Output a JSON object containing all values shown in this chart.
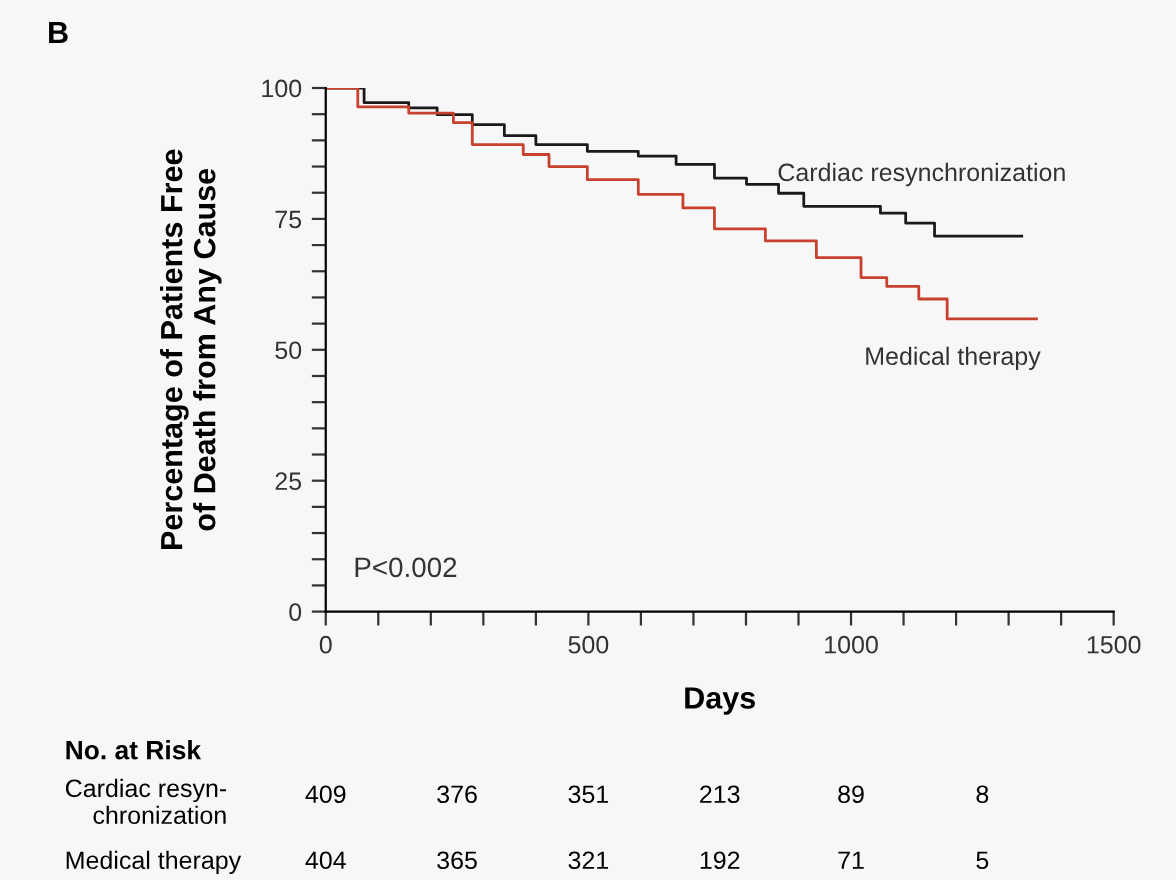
{
  "chart_data": {
    "type": "step",
    "xlabel": "Days",
    "ylabel": "Percentage of Patients Free\nof Death from Any Cause",
    "xlim": [
      0,
      1500
    ],
    "ylim": [
      0,
      100
    ],
    "xticks": [
      0,
      {
        "value": 100,
        "label": null
      },
      {
        "value": 200,
        "label": null
      },
      {
        "value": 300,
        "label": null
      },
      {
        "value": 400,
        "label": null
      },
      500,
      {
        "value": 600,
        "label": null
      },
      {
        "value": 700,
        "label": null
      },
      {
        "value": 800,
        "label": null
      },
      {
        "value": 900,
        "label": null
      },
      1000,
      {
        "value": 1100,
        "label": null
      },
      {
        "value": 1200,
        "label": null
      },
      {
        "value": 1300,
        "label": null
      },
      {
        "value": 1400,
        "label": null
      },
      1500
    ],
    "yticks": [
      0,
      {
        "value": 5,
        "label": null
      },
      {
        "value": 10,
        "label": null
      },
      {
        "value": 15,
        "label": null
      },
      {
        "value": 20,
        "label": null
      },
      25,
      {
        "value": 30,
        "label": null
      },
      {
        "value": 35,
        "label": null
      },
      {
        "value": 40,
        "label": null
      },
      {
        "value": 45,
        "label": null
      },
      50,
      {
        "value": 55,
        "label": null
      },
      {
        "value": 60,
        "label": null
      },
      {
        "value": 65,
        "label": null
      },
      {
        "value": 70,
        "label": null
      },
      75,
      {
        "value": 80,
        "label": null
      },
      {
        "value": 85,
        "label": null
      },
      {
        "value": 90,
        "label": null
      },
      {
        "value": 95,
        "label": null
      },
      100
    ],
    "grid": false,
    "legend": false,
    "series": [
      {
        "name": "Cardiac resynchronization",
        "color": "#1a1a1a",
        "x": [
          0,
          73,
          158,
          212,
          279,
          340,
          400,
          498,
          595,
          667,
          740,
          801,
          862,
          910,
          1056,
          1104,
          1159,
          1325
        ],
        "values": [
          100,
          97.2,
          96.2,
          94.9,
          93,
          90.9,
          89.2,
          87.9,
          87,
          85.4,
          82.8,
          81.6,
          79.9,
          77.4,
          76.1,
          74.2,
          71.7,
          71.7
        ]
      },
      {
        "name": "Medical therapy",
        "color": "#c8412e",
        "x": [
          0,
          61,
          158,
          243,
          279,
          376,
          425,
          498,
          595,
          680,
          740,
          837,
          934,
          1019,
          1068,
          1129,
          1183,
          1353
        ],
        "values": [
          100,
          96.4,
          95.2,
          93.4,
          89.2,
          87.3,
          85,
          82.5,
          79.7,
          77.1,
          73.1,
          70.8,
          67.6,
          63.8,
          62.1,
          59.7,
          55.9,
          55.9
        ]
      }
    ],
    "annotations": [
      "B",
      "P<0.002",
      "No. at Risk",
      "Cardiac resyn-\nchronization",
      "409",
      "376",
      "351",
      "213",
      "89",
      "8",
      "Medical therapy",
      "404",
      "365",
      "321",
      "192",
      "71",
      "5"
    ]
  }
}
